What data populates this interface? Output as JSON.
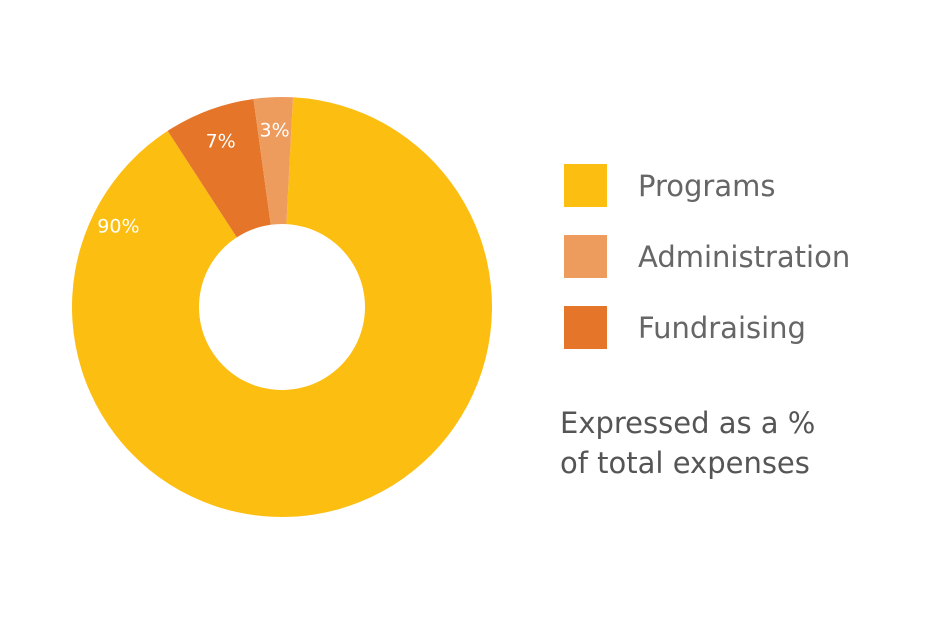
{
  "chart_data": {
    "type": "pie",
    "variant": "donut",
    "title": "",
    "categories": [
      "Programs",
      "Administration",
      "Fundraising"
    ],
    "values": [
      90,
      3,
      7
    ],
    "labels": [
      "90%",
      "3%",
      "7%"
    ],
    "colors": [
      "#FDBE12",
      "#EE9B5E",
      "#E57528"
    ],
    "legend": {
      "placement": "right",
      "items": [
        {
          "label": "Programs",
          "color": "#FDBE12"
        },
        {
          "label": "Administration",
          "color": "#EE9B5E"
        },
        {
          "label": "Fundraising",
          "color": "#E57528"
        }
      ]
    }
  },
  "note": {
    "line1": "Expressed as a %",
    "line2": "of total expenses"
  }
}
